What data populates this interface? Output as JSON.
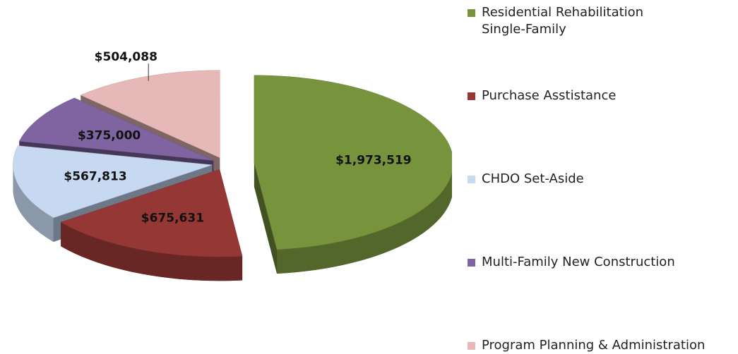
{
  "chart_data": {
    "type": "pie",
    "categories": [
      "Residential Rehabilitation\nSingle-Family",
      "Purchase Asstistance",
      "CHDO Set-Aside",
      "Multi-Family New Construction",
      "Program Planning & Administration"
    ],
    "values": [
      1973519,
      675631,
      567813,
      375000,
      504088
    ],
    "value_labels": [
      "$1,973,519",
      "$675,631",
      "$567,813",
      "$375,000",
      "$504,088"
    ],
    "colors": [
      "#77933c",
      "#953735",
      "#c6d9f1",
      "#8064a2",
      "#e6b9b8"
    ],
    "legend": "right"
  }
}
